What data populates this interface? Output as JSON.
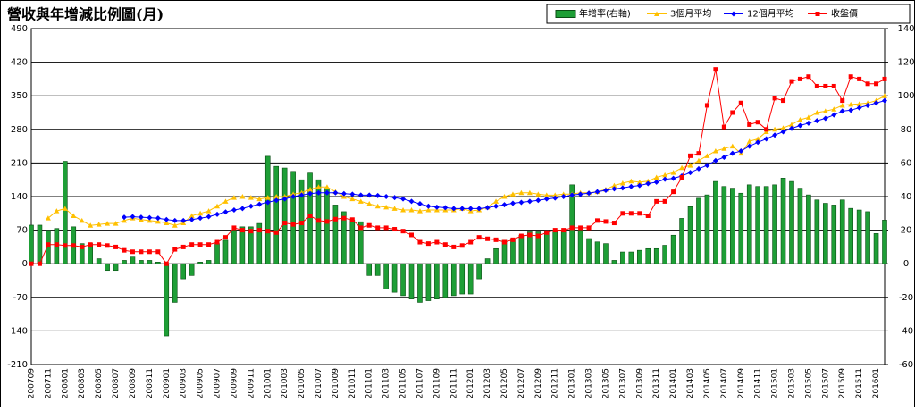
{
  "chart_data": {
    "type": "combo",
    "title": "營收與年增減比例圖(月)",
    "categories": [
      "200709",
      null,
      "200711",
      null,
      "200801",
      null,
      "200803",
      null,
      "200805",
      null,
      "200807",
      null,
      "200809",
      null,
      "200811",
      null,
      "200901",
      null,
      "200903",
      null,
      "200905",
      null,
      "200907",
      null,
      "200909",
      null,
      "200911",
      null,
      "201001",
      null,
      "201003",
      null,
      "201005",
      null,
      "201007",
      null,
      "201009",
      null,
      "201011",
      null,
      "201101",
      null,
      "201103",
      null,
      "201105",
      null,
      "201107",
      null,
      "201109",
      null,
      "201111",
      null,
      "201201",
      null,
      "201203",
      null,
      "201205",
      null,
      "201207",
      null,
      "201209",
      null,
      "201211",
      null,
      "201301",
      null,
      "201303",
      null,
      "201305",
      null,
      "201307",
      null,
      "201309",
      null,
      "201311",
      null,
      "201401",
      null,
      "201403",
      null,
      "201405",
      null,
      "201407",
      null,
      "201409",
      null,
      "201411",
      null,
      "201501",
      null,
      "201503",
      null,
      "201505",
      null,
      "201507",
      null,
      "201509",
      null,
      "201511",
      null,
      "201601",
      null
    ],
    "ylim": [
      -210,
      490
    ],
    "yticks": [
      -210,
      -140,
      -70,
      0,
      70,
      140,
      210,
      280,
      350,
      420,
      490
    ],
    "y2lim": [
      -60,
      140
    ],
    "y2ticks": [
      -60,
      -40,
      -20,
      0,
      20,
      40,
      60,
      80,
      100,
      120,
      140
    ],
    "grid": true,
    "legend": "top-right",
    "series": [
      {
        "name": "年增率(右軸)",
        "type": "bar",
        "axis": "y2",
        "color": "#1e9e36",
        "values": [
          23,
          23,
          20,
          21,
          61,
          22,
          12,
          12,
          3,
          -4,
          -4,
          2,
          4,
          2,
          2,
          1,
          -43,
          -23,
          -9,
          -7,
          1,
          2,
          12,
          14,
          20,
          22,
          22,
          24,
          64,
          58,
          57,
          55,
          50,
          54,
          50,
          45,
          35,
          31,
          26,
          25,
          -7,
          -7,
          -15,
          -17,
          -19,
          -21,
          -23,
          -22,
          -21,
          -20,
          -19,
          -18,
          -18,
          -9,
          3,
          9,
          14,
          15,
          17,
          19,
          19,
          19,
          20,
          20,
          47,
          20,
          15,
          13,
          12,
          2,
          7,
          7,
          8,
          9,
          9,
          11,
          17,
          27,
          34,
          39,
          41,
          49,
          46,
          45,
          42,
          47,
          46,
          46,
          47,
          51,
          49,
          45,
          41,
          38,
          36,
          35,
          38,
          33,
          32,
          31,
          18,
          26
        ]
      },
      {
        "name": "3個月平均",
        "type": "line",
        "color": "#ffc000",
        "marker": "triangle",
        "values": [
          null,
          null,
          95,
          110,
          115,
          100,
          90,
          80,
          82,
          84,
          84,
          90,
          95,
          92,
          90,
          88,
          85,
          80,
          85,
          100,
          105,
          110,
          120,
          130,
          138,
          140,
          138,
          135,
          138,
          140,
          140,
          145,
          148,
          155,
          160,
          160,
          150,
          140,
          135,
          130,
          125,
          120,
          118,
          115,
          112,
          112,
          110,
          112,
          112,
          112,
          112,
          115,
          110,
          112,
          118,
          130,
          140,
          145,
          148,
          148,
          145,
          143,
          143,
          145,
          145,
          148,
          148,
          150,
          155,
          163,
          168,
          172,
          170,
          172,
          180,
          185,
          190,
          200,
          205,
          215,
          225,
          235,
          240,
          245,
          230,
          255,
          260,
          275,
          280,
          283,
          290,
          300,
          305,
          315,
          318,
          322,
          330,
          332,
          333,
          335,
          340,
          350
        ]
      },
      {
        "name": "12個月平均",
        "type": "line",
        "color": "#0000ff",
        "marker": "diamond",
        "values": [
          null,
          null,
          null,
          null,
          null,
          null,
          null,
          null,
          null,
          null,
          null,
          97,
          98,
          97,
          96,
          95,
          92,
          90,
          90,
          92,
          95,
          98,
          103,
          108,
          112,
          115,
          120,
          124,
          128,
          132,
          135,
          140,
          143,
          146,
          148,
          148,
          148,
          146,
          145,
          143,
          143,
          142,
          140,
          138,
          135,
          130,
          125,
          120,
          118,
          117,
          115,
          115,
          115,
          115,
          117,
          120,
          123,
          126,
          128,
          130,
          132,
          135,
          137,
          140,
          143,
          145,
          147,
          150,
          153,
          156,
          158,
          161,
          163,
          167,
          170,
          176,
          178,
          183,
          190,
          198,
          205,
          215,
          222,
          230,
          235,
          245,
          253,
          260,
          268,
          275,
          282,
          288,
          293,
          298,
          303,
          310,
          318,
          320,
          325,
          330,
          335,
          340
        ]
      },
      {
        "name": "收盤價",
        "type": "line",
        "color": "#ff0000",
        "marker": "square",
        "values": [
          0,
          0,
          40,
          40,
          38,
          38,
          35,
          40,
          40,
          38,
          35,
          28,
          25,
          25,
          25,
          25,
          0,
          30,
          35,
          40,
          40,
          40,
          45,
          55,
          75,
          70,
          68,
          70,
          68,
          65,
          85,
          82,
          85,
          100,
          90,
          88,
          93,
          95,
          92,
          75,
          80,
          75,
          75,
          72,
          68,
          60,
          45,
          42,
          45,
          40,
          35,
          38,
          45,
          55,
          52,
          50,
          45,
          50,
          58,
          60,
          58,
          65,
          70,
          70,
          75,
          75,
          75,
          90,
          88,
          85,
          105,
          105,
          105,
          100,
          130,
          130,
          150,
          180,
          225,
          230,
          330,
          405,
          285,
          315,
          335,
          290,
          295,
          280,
          345,
          340,
          380,
          385,
          390,
          370,
          370,
          370,
          340,
          390,
          385,
          375,
          375,
          385
        ]
      }
    ]
  }
}
